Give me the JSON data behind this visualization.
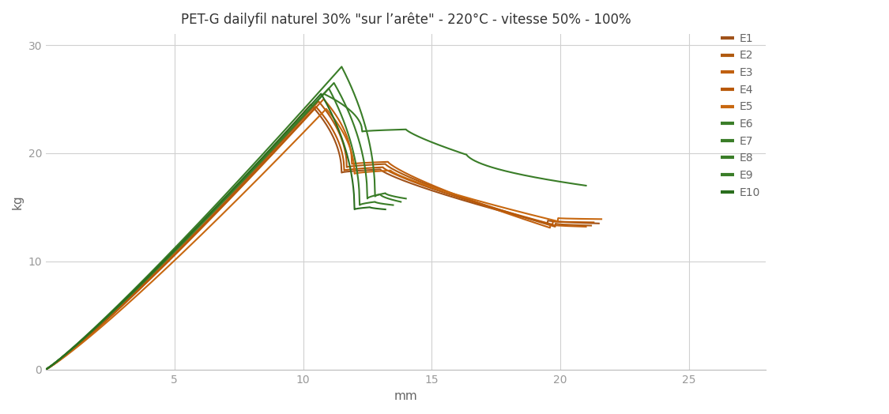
{
  "title": "PET-G dailyfil naturel 30% \"sur l’arête\" - 220°C - vitesse 50% - 100%",
  "xlabel": "mm",
  "ylabel": "kg",
  "xlim": [
    0,
    28
  ],
  "ylim": [
    0,
    31
  ],
  "xticks": [
    5,
    10,
    15,
    20,
    25
  ],
  "yticks": [
    0,
    10,
    20,
    30
  ],
  "legend_labels": [
    "E1",
    "E2",
    "E3",
    "E4",
    "E5",
    "E6",
    "E7",
    "E8",
    "E9",
    "E10"
  ],
  "brown_colors": [
    "#A0521A",
    "#B05A10",
    "#C06010",
    "#B85808",
    "#C86810"
  ],
  "green_colors": [
    "#3A7D28",
    "#3A7D28",
    "#3A7D28",
    "#3A7D28",
    "#2A6E1E"
  ],
  "bg_color": "#ffffff",
  "grid_color": "#d0d0d0"
}
